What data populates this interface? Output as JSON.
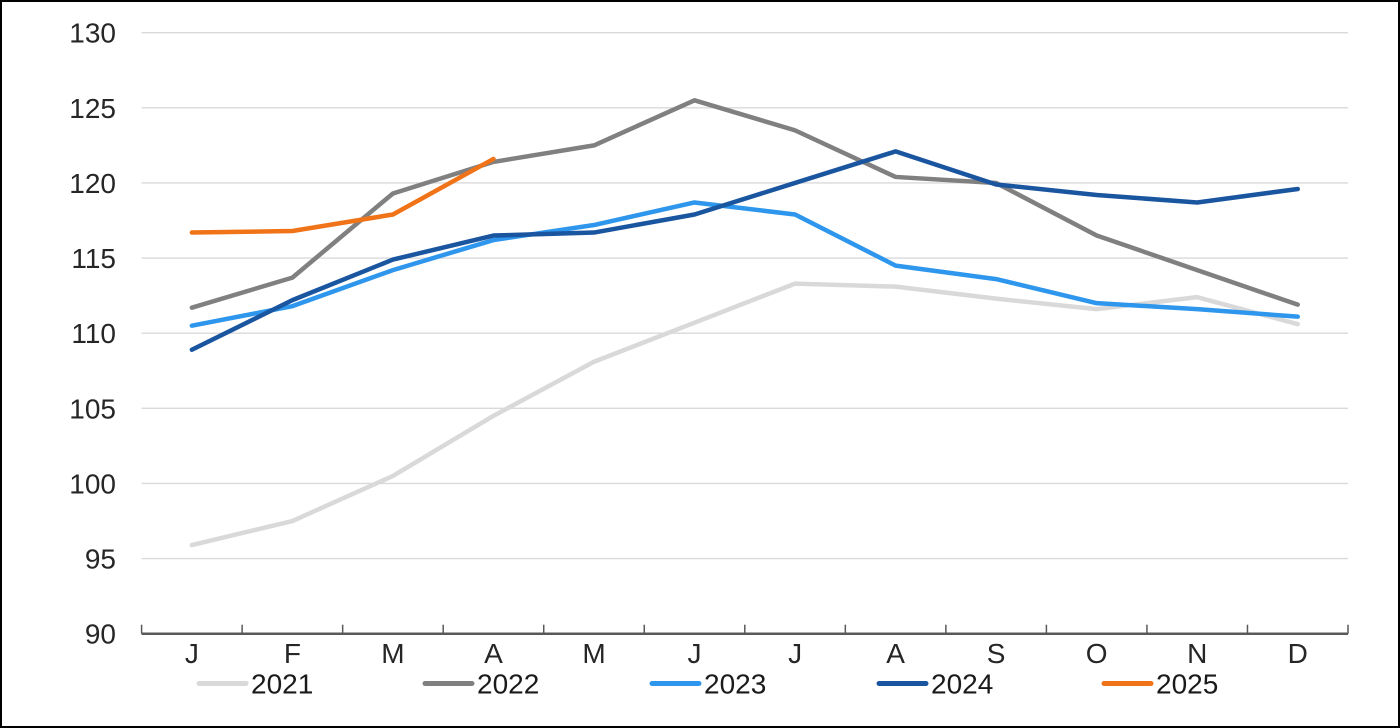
{
  "window": {
    "background_color": "#FFFFFF",
    "border_color": "#000000"
  },
  "chart_data": {
    "type": "line",
    "title": "",
    "x_categories": [
      "J",
      "F",
      "M",
      "A",
      "M",
      "J",
      "J",
      "A",
      "S",
      "O",
      "N",
      "D"
    ],
    "y_axis": {
      "min": 90,
      "max": 130,
      "tick_interval": 5,
      "tick_labels": [
        "90",
        "95",
        "100",
        "105",
        "110",
        "115",
        "120",
        "125",
        "130"
      ]
    },
    "grid": true,
    "legend_position": "bottom",
    "style": {
      "gridline_color": "#D9D9D9",
      "axis_color": "#595959",
      "tick_color": "#595959",
      "text_color": "#262626",
      "legend_text_color": "#1A1A1A"
    },
    "series": [
      {
        "name": "2021",
        "color": "#D9D9D9",
        "values": [
          95.9,
          97.5,
          100.5,
          104.5,
          108.1,
          110.7,
          113.3,
          113.1,
          112.3,
          111.6,
          112.4,
          110.6
        ]
      },
      {
        "name": "2022",
        "color": "#808080",
        "values": [
          111.7,
          113.7,
          119.3,
          121.4,
          122.5,
          125.5,
          123.5,
          120.4,
          120.0,
          116.5,
          114.2,
          111.9
        ]
      },
      {
        "name": "2023",
        "color": "#2E96EC",
        "values": [
          110.5,
          111.8,
          114.2,
          116.2,
          117.2,
          118.7,
          117.9,
          114.5,
          113.6,
          112.0,
          111.6,
          111.1
        ]
      },
      {
        "name": "2024",
        "color": "#1A55A0",
        "values": [
          108.9,
          112.2,
          114.9,
          116.5,
          116.7,
          117.9,
          120.0,
          122.1,
          119.9,
          119.2,
          118.7,
          119.6
        ]
      },
      {
        "name": "2025",
        "color": "#F07318",
        "values": [
          116.7,
          116.8,
          117.9,
          121.6
        ]
      }
    ]
  }
}
